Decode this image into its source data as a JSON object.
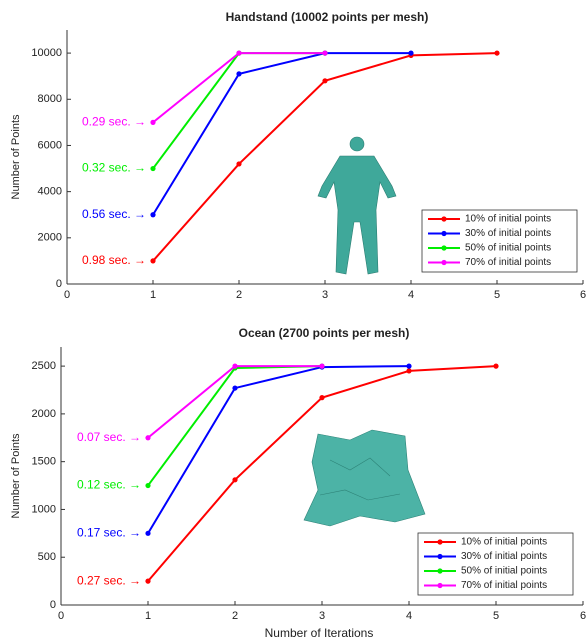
{
  "chart_data": [
    {
      "type": "line",
      "title": "Handstand (10002 points per mesh)",
      "y_label": "Number of Points",
      "x": [
        1,
        2,
        3,
        4,
        5
      ],
      "xlim": [
        0,
        6
      ],
      "xticks": [
        0,
        1,
        2,
        3,
        4,
        5,
        6
      ],
      "ylim": [
        0,
        11000
      ],
      "yticks": [
        0,
        2000,
        4000,
        6000,
        8000,
        10000
      ],
      "legend": "lower right",
      "series": [
        {
          "name": "10% of initial points",
          "color": "#ff0000",
          "values": [
            1000,
            5200,
            8800,
            9900,
            10000
          ],
          "annotation": "0.98 sec. →"
        },
        {
          "name": "30% of initial points",
          "color": "#0000ff",
          "values": [
            3000,
            9100,
            10000,
            10000,
            null
          ],
          "annotation": "0.56 sec. →"
        },
        {
          "name": "50% of initial points",
          "color": "#00ee00",
          "values": [
            5000,
            10000,
            10000,
            null,
            null
          ],
          "annotation": "0.32 sec. →"
        },
        {
          "name": "70% of initial points",
          "color": "#ff00ff",
          "values": [
            7000,
            10000,
            10000,
            null,
            null
          ],
          "annotation": "0.29 sec. →"
        }
      ]
    },
    {
      "type": "line",
      "title": "Ocean (2700 points per mesh)",
      "y_label": "Number of Points",
      "x_label": "Number of Iterations",
      "x": [
        1,
        2,
        3,
        4,
        5
      ],
      "xlim": [
        0,
        6
      ],
      "xticks": [
        0,
        1,
        2,
        3,
        4,
        5,
        6
      ],
      "ylim": [
        0,
        2700
      ],
      "yticks": [
        0,
        500,
        1000,
        1500,
        2000,
        2500
      ],
      "legend": "lower right",
      "series": [
        {
          "name": "10% of initial points",
          "color": "#ff0000",
          "values": [
            250,
            1310,
            2170,
            2450,
            2500
          ],
          "annotation": "0.27 sec. →"
        },
        {
          "name": "30% of initial points",
          "color": "#0000ff",
          "values": [
            750,
            2270,
            2490,
            2500,
            null
          ],
          "annotation": "0.17 sec. →"
        },
        {
          "name": "50% of initial points",
          "color": "#00ee00",
          "values": [
            1250,
            2480,
            2500,
            null,
            null
          ],
          "annotation": "0.12 sec. →"
        },
        {
          "name": "70% of initial points",
          "color": "#ff00ff",
          "values": [
            1750,
            2500,
            2500,
            null,
            null
          ],
          "annotation": "0.07 sec. →"
        }
      ]
    }
  ]
}
